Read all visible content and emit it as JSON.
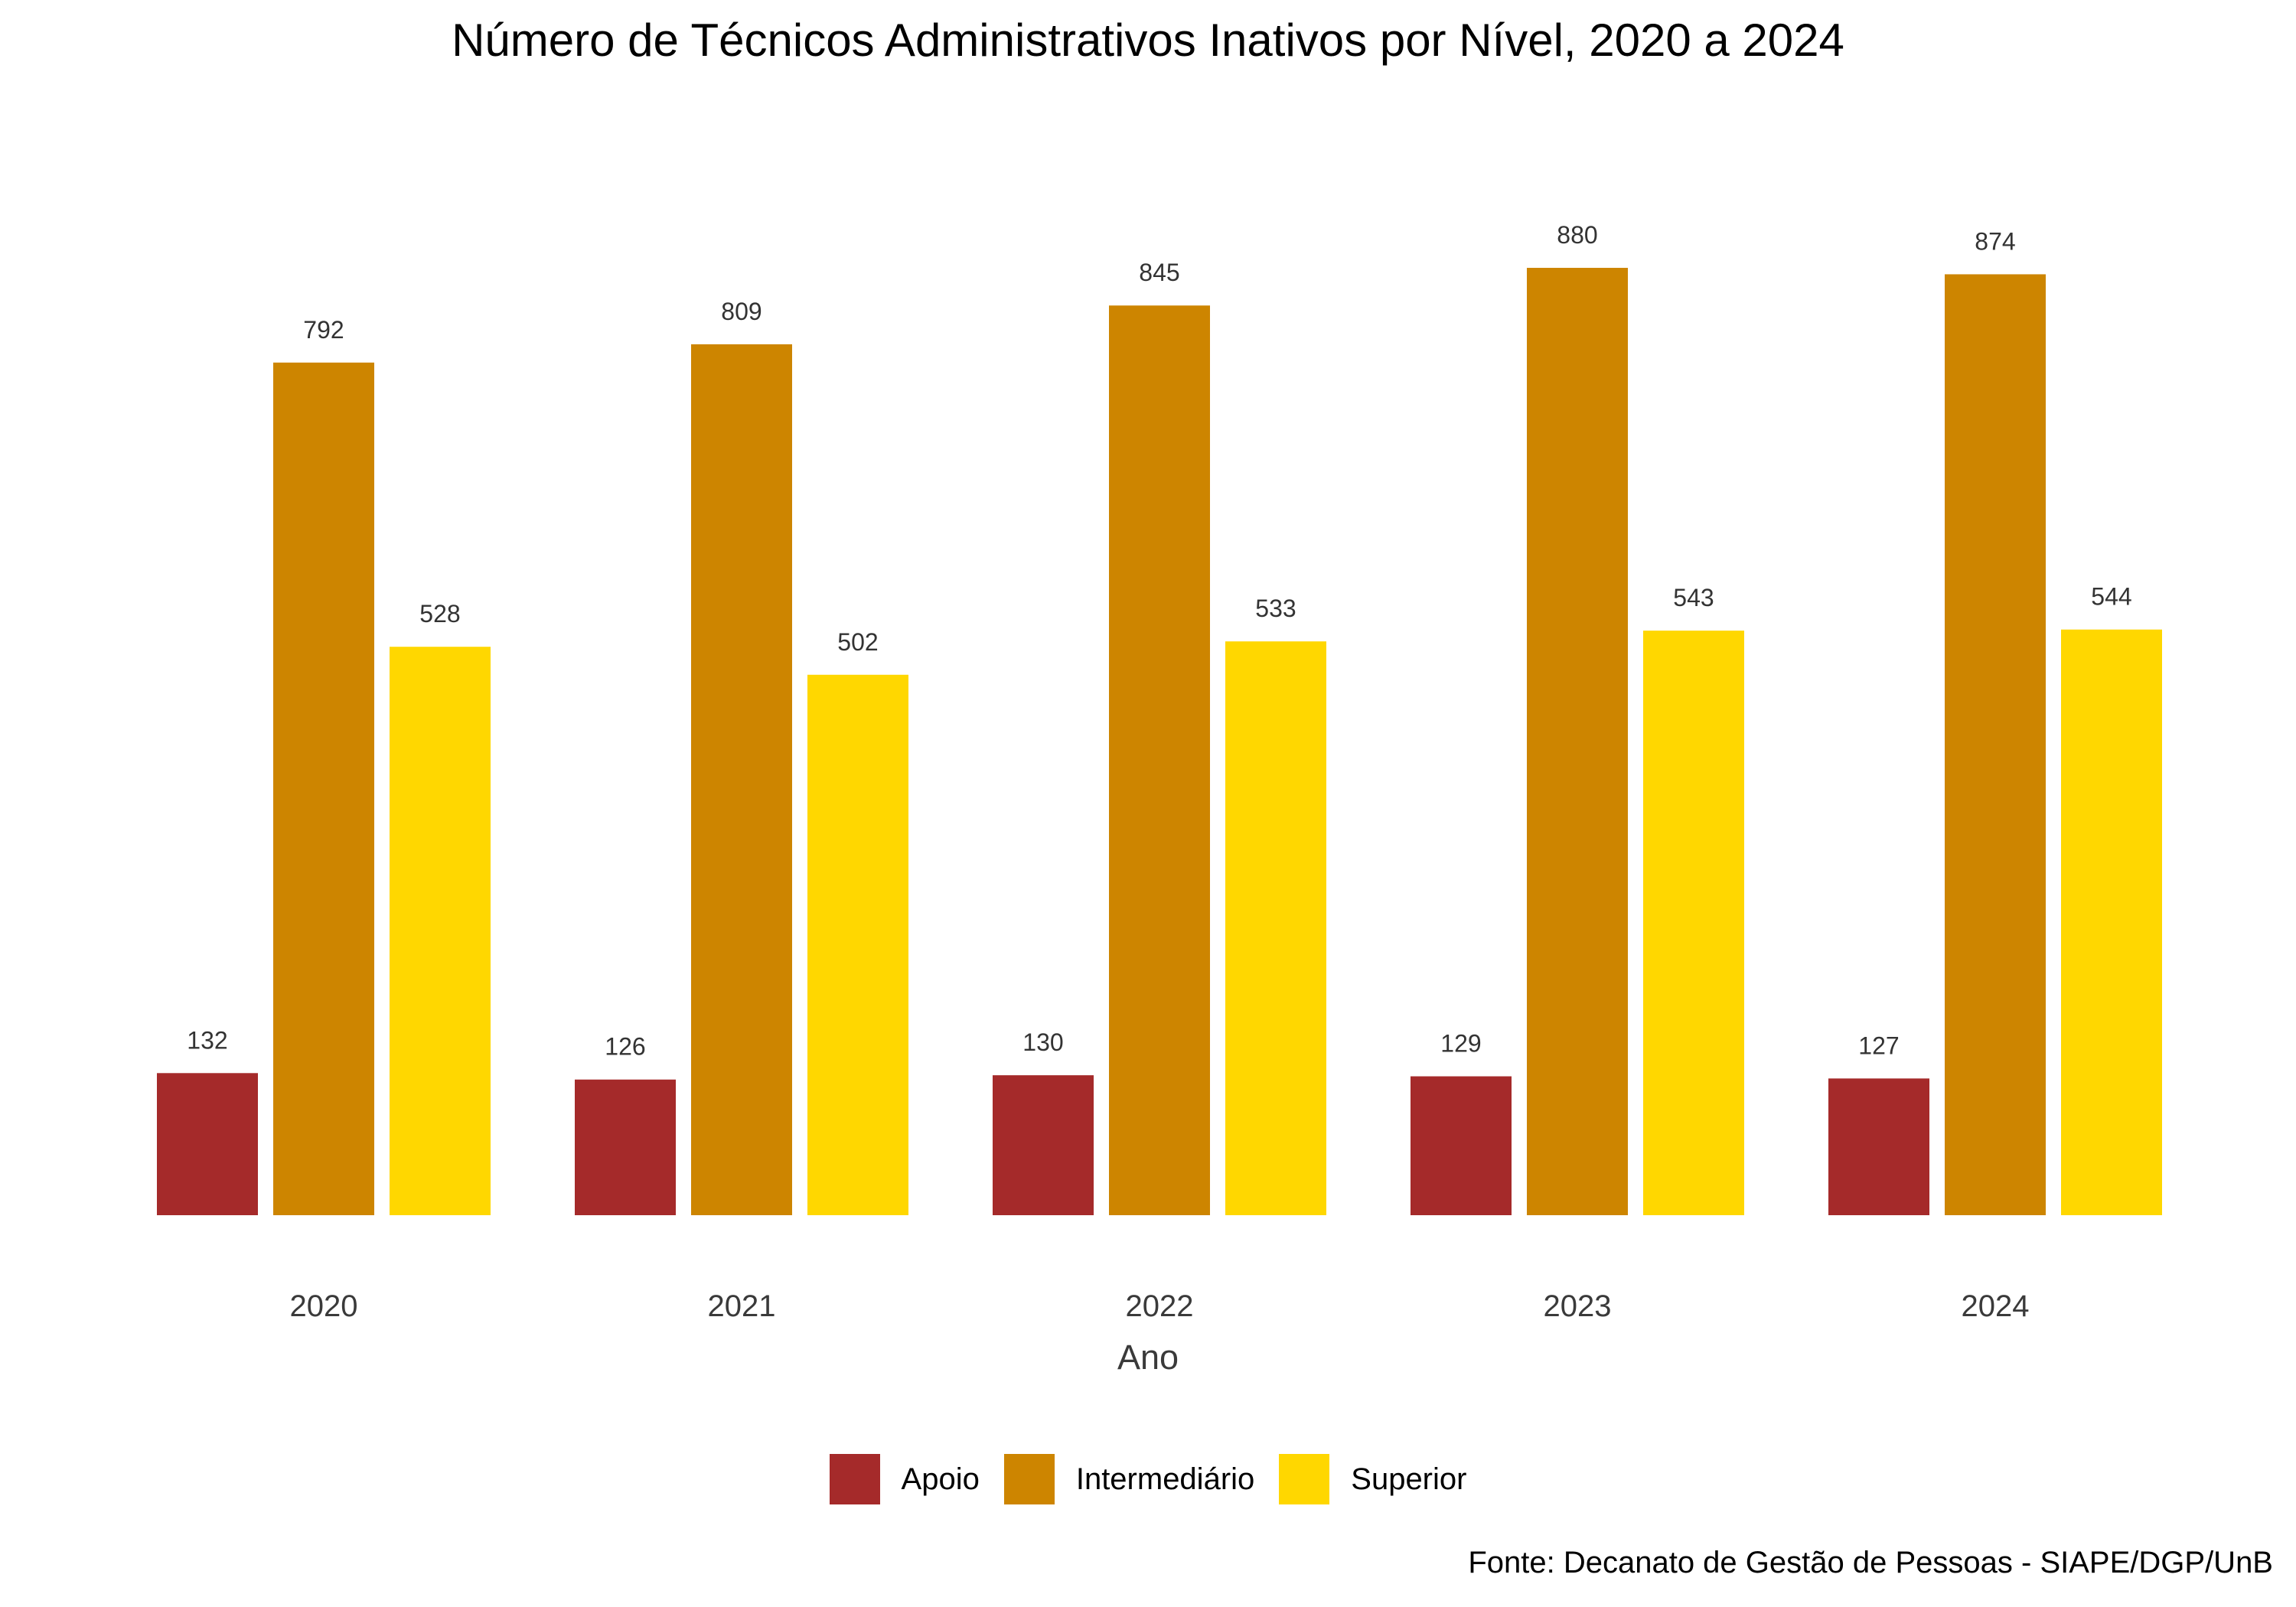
{
  "chart_data": {
    "type": "bar",
    "title": "Número de Técnicos Administrativos Inativos por Nível, 2020 a 2024",
    "xlabel": "Ano",
    "ylabel": "",
    "caption": "Fonte: Decanato de Gestão de Pessoas - SIAPE/DGP/UnB",
    "categories": [
      "2020",
      "2021",
      "2022",
      "2023",
      "2024"
    ],
    "series": [
      {
        "name": "Apoio",
        "color": "#A52A2A",
        "values": [
          132,
          126,
          130,
          129,
          127
        ]
      },
      {
        "name": "Intermediário",
        "color": "#CD8500",
        "values": [
          792,
          809,
          845,
          880,
          874
        ]
      },
      {
        "name": "Superior",
        "color": "#FFD700",
        "values": [
          528,
          502,
          533,
          543,
          544
        ]
      }
    ],
    "ylim": [
      0,
      880
    ],
    "grid": false,
    "legend_position": "bottom",
    "data_labels": true
  }
}
